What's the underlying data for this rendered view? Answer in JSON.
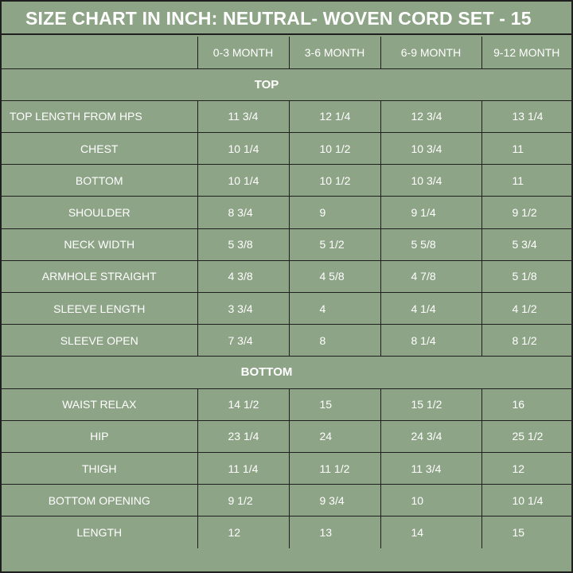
{
  "title": "SIZE CHART IN INCH: NEUTRAL- WOVEN CORD SET - 15",
  "colors": {
    "background": "#8ea487",
    "grid": "#1f1f1f",
    "text": "#ffffff"
  },
  "header": {
    "corner": "",
    "sizes": [
      "0-3 MONTH",
      "3-6 MONTH",
      "6-9 MONTH",
      "9-12 MONTH"
    ]
  },
  "sections": [
    {
      "name": "TOP",
      "rows": [
        {
          "label": "TOP LENGTH FROM HPS",
          "values": [
            "11 3/4",
            "12 1/4",
            "12 3/4",
            "13 1/4"
          ]
        },
        {
          "label": "CHEST",
          "values": [
            "10 1/4",
            "10 1/2",
            "10 3/4",
            "11"
          ]
        },
        {
          "label": "BOTTOM",
          "values": [
            "10 1/4",
            "10 1/2",
            "10 3/4",
            "11"
          ]
        },
        {
          "label": "SHOULDER",
          "values": [
            "8 3/4",
            "9",
            "9 1/4",
            "9 1/2"
          ]
        },
        {
          "label": "NECK WIDTH",
          "values": [
            "5 3/8",
            "5 1/2",
            "5 5/8",
            "5 3/4"
          ]
        },
        {
          "label": "ARMHOLE STRAIGHT",
          "values": [
            "4 3/8",
            "4 5/8",
            "4 7/8",
            "5 1/8"
          ]
        },
        {
          "label": "SLEEVE LENGTH",
          "values": [
            "3 3/4",
            "4",
            "4 1/4",
            "4 1/2"
          ]
        },
        {
          "label": "SLEEVE OPEN",
          "values": [
            "7 3/4",
            "8",
            "8 1/4",
            "8 1/2"
          ]
        }
      ]
    },
    {
      "name": "BOTTOM",
      "rows": [
        {
          "label": "WAIST RELAX",
          "values": [
            "14 1/2",
            "15",
            "15 1/2",
            "16"
          ]
        },
        {
          "label": "HIP",
          "values": [
            "23 1/4",
            "24",
            "24 3/4",
            "25 1/2"
          ]
        },
        {
          "label": "THIGH",
          "values": [
            "11 1/4",
            "11 1/2",
            "11 3/4",
            "12"
          ]
        },
        {
          "label": "BOTTOM OPENING",
          "values": [
            "9 1/2",
            "9 3/4",
            "10",
            "10 1/4"
          ]
        },
        {
          "label": "LENGTH",
          "values": [
            "12",
            "13",
            "14",
            "15"
          ]
        }
      ]
    }
  ]
}
